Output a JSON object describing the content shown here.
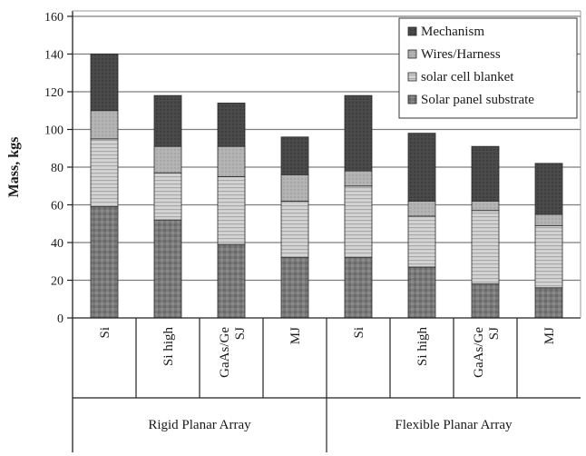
{
  "chart_data": {
    "type": "bar",
    "stacked": true,
    "ylabel": "Mass, kgs",
    "ylim": [
      0,
      160
    ],
    "yticks": [
      0,
      20,
      40,
      60,
      80,
      100,
      120,
      140,
      160
    ],
    "grid": true,
    "legend_position": "top-right",
    "categories": [
      "Si",
      "Si high",
      "GaAs/Ge SJ",
      "MJ",
      "Si",
      "Si high",
      "GaAs/Ge SJ",
      "MJ"
    ],
    "groups": [
      {
        "label": "Rigid Planar Array",
        "members": [
          0,
          1,
          2,
          3
        ]
      },
      {
        "label": "Flexible Planar Array",
        "members": [
          4,
          5,
          6,
          7
        ]
      }
    ],
    "series": [
      {
        "name": "Solar panel substrate",
        "color": "#7a7a7a",
        "values": [
          59,
          52,
          39,
          32,
          32,
          27,
          18,
          16
        ]
      },
      {
        "name": "solar cell blanket",
        "color": "#c9c9c9",
        "values": [
          36,
          25,
          36,
          30,
          38,
          27,
          39,
          33
        ]
      },
      {
        "name": "Wires/Harness",
        "color": "#b1b1b1",
        "values": [
          15,
          14,
          16,
          14,
          8,
          8,
          5,
          6
        ]
      },
      {
        "name": "Mechanism",
        "color": "#4a4a4a",
        "values": [
          30,
          27,
          23,
          20,
          40,
          36,
          29,
          27
        ]
      }
    ]
  }
}
